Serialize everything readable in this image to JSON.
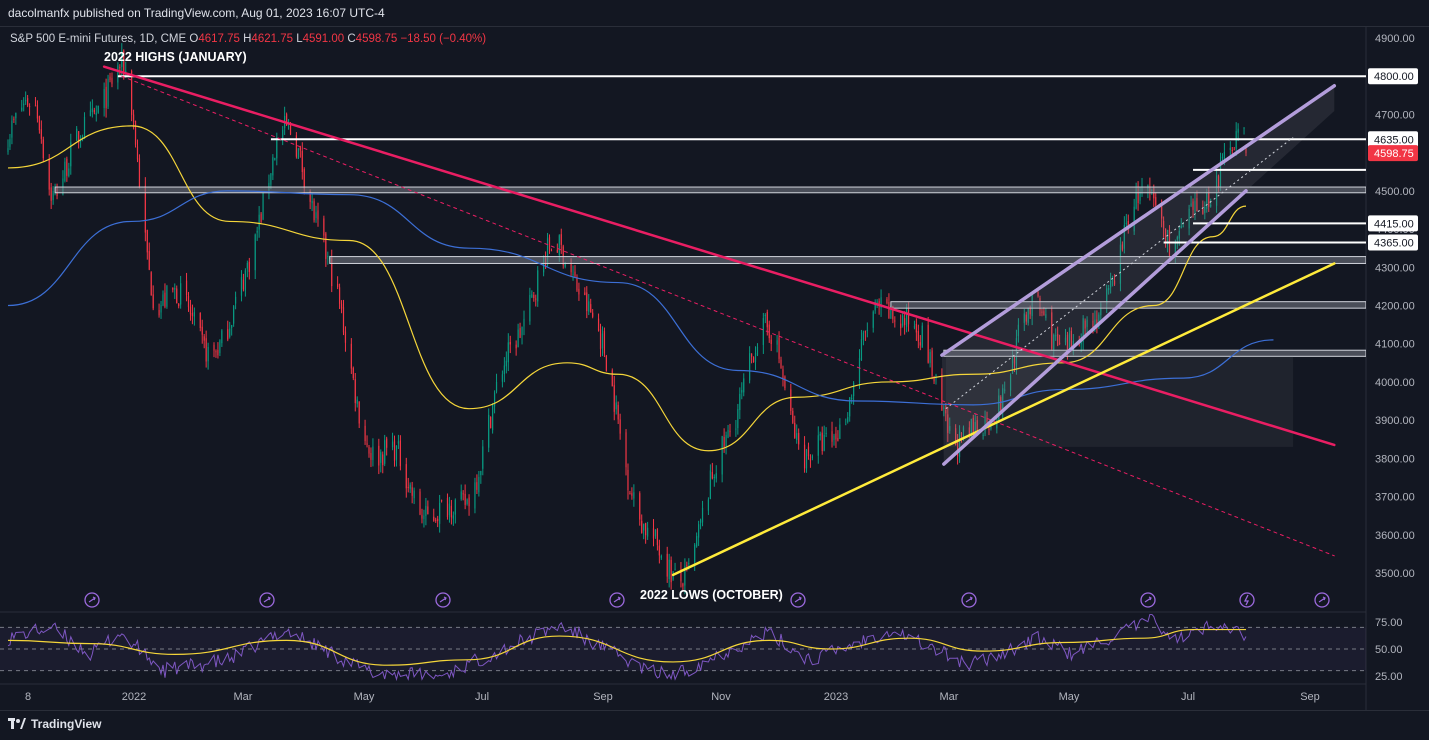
{
  "header": {
    "published_text": "dacolmanfx published on TradingView.com, Aug 01, 2023 16:07 UTC-4"
  },
  "legend": {
    "symbol": "S&P 500 E-mini Futures, 1D, CME",
    "open_label": "O",
    "open": "4617.75",
    "high_label": "H",
    "high": "4621.75",
    "low_label": "L",
    "low": "4591.00",
    "close_label": "C",
    "close": "4598.75",
    "change": "−18.50 (−0.40%)"
  },
  "annotations": {
    "highs": "2022 HIGHS (JANUARY)",
    "lows": "2022 LOWS (OCTOBER)"
  },
  "footer": {
    "brand": "TradingView"
  },
  "colors": {
    "background": "#131722",
    "up_candle": "#089981",
    "down_candle": "#f23645",
    "sma_short": "#f5d63a",
    "sma_long": "#3c6fd6",
    "trendline_down": "#e91e63",
    "trendline_up": "#ffeb3b",
    "channel": "#b39ddb",
    "rsi": "#7e57c2",
    "rsi_ma": "#f5d63a",
    "price_badge": "#f23645"
  },
  "chart_data": [
    {
      "type": "candlestick",
      "title": "S&P 500 E-mini Futures, 1D, CME",
      "ylim": [
        3450,
        4950
      ],
      "y_ticks": [
        "4900.00",
        "4800.00",
        "4700.00",
        "4600.00",
        "4500.00",
        "4400.00",
        "4300.00",
        "4200.00",
        "4100.00",
        "4000.00",
        "3900.00",
        "3800.00",
        "3700.00",
        "3600.00",
        "3500.00"
      ],
      "x_ticks": [
        "8",
        "2022",
        "Mar",
        "May",
        "Jul",
        "Sep",
        "Nov",
        "2023",
        "Mar",
        "May",
        "Jul",
        "Sep"
      ],
      "date_range": [
        "2021-11-08",
        "2023-08-01"
      ],
      "key_prices": [
        {
          "date": "2021-11-08",
          "price": 4650
        },
        {
          "date": "2021-11-22",
          "price": 4720
        },
        {
          "date": "2021-12-01",
          "price": 4520
        },
        {
          "date": "2022-01-04",
          "price": 4808
        },
        {
          "date": "2022-01-24",
          "price": 4230
        },
        {
          "date": "2022-02-24",
          "price": 4100
        },
        {
          "date": "2022-03-29",
          "price": 4630
        },
        {
          "date": "2022-05-20",
          "price": 3800
        },
        {
          "date": "2022-06-17",
          "price": 3640
        },
        {
          "date": "2022-08-16",
          "price": 4330
        },
        {
          "date": "2022-10-13",
          "price": 3500
        },
        {
          "date": "2022-12-01",
          "price": 4110
        },
        {
          "date": "2022-12-22",
          "price": 3790
        },
        {
          "date": "2023-02-02",
          "price": 4200
        },
        {
          "date": "2023-03-13",
          "price": 3840
        },
        {
          "date": "2023-04-18",
          "price": 4180
        },
        {
          "date": "2023-05-04",
          "price": 4090
        },
        {
          "date": "2023-06-15",
          "price": 4490
        },
        {
          "date": "2023-06-26",
          "price": 4360
        },
        {
          "date": "2023-07-27",
          "price": 4620
        },
        {
          "date": "2023-08-01",
          "price": 4598.75
        }
      ],
      "horizontal_levels": [
        {
          "price": 4800,
          "label": "4800.00",
          "from": "2022-01-03"
        },
        {
          "price": 4635,
          "label": "4635.00",
          "from": "2022-03-22"
        },
        {
          "price": 4555,
          "label": "",
          "from": "2023-07-05"
        },
        {
          "price": 4415,
          "label": "4415.00",
          "from": "2023-07-05"
        },
        {
          "price": 4365,
          "label": "4365.00",
          "from": "2023-06-20"
        }
      ],
      "zones": [
        {
          "from_price": 4495,
          "to_price": 4510,
          "from": "2021-12-02"
        },
        {
          "from_price": 4310,
          "to_price": 4328,
          "from": "2022-04-21"
        },
        {
          "from_price": 4193,
          "to_price": 4210,
          "from": "2023-02-01"
        },
        {
          "from_price": 4067,
          "to_price": 4083,
          "from": "2023-02-28"
        }
      ],
      "trendlines": [
        {
          "name": "",
          "role": "downtrend",
          "from": {
            "date": "2021-12-27",
            "price": 4825
          },
          "to": {
            "date": "2023-09-15",
            "price": 3835
          }
        },
        {
          "name": "",
          "role": "downtrend-dashed",
          "from": {
            "date": "2022-01-05",
            "price": 4800
          },
          "to": {
            "date": "2023-09-15",
            "price": 3545
          }
        },
        {
          "name": "",
          "role": "uptrend",
          "from": {
            "date": "2022-10-13",
            "price": 3495
          },
          "to": {
            "date": "2023-09-15",
            "price": 4310
          }
        },
        {
          "name": "",
          "role": "channel-upper",
          "from": {
            "date": "2023-02-27",
            "price": 4070
          },
          "to": {
            "date": "2023-09-15",
            "price": 4775
          }
        },
        {
          "name": "",
          "role": "channel-lower",
          "from": {
            "date": "2023-02-28",
            "price": 3785
          },
          "to": {
            "date": "2023-08-01",
            "price": 4500
          }
        }
      ],
      "moving_averages": [
        {
          "name": "",
          "color": "#f5d63a",
          "points": [
            [
              "2021-11-08",
              4560
            ],
            [
              "2022-01-10",
              4670
            ],
            [
              "2022-03-01",
              4420
            ],
            [
              "2022-05-01",
              4370
            ],
            [
              "2022-07-01",
              3930
            ],
            [
              "2022-08-20",
              4050
            ],
            [
              "2022-09-15",
              4020
            ],
            [
              "2022-10-31",
              3820
            ],
            [
              "2022-12-15",
              3960
            ],
            [
              "2023-01-31",
              4000
            ],
            [
              "2023-03-15",
              4020
            ],
            [
              "2023-04-30",
              4050
            ],
            [
              "2023-06-15",
              4200
            ],
            [
              "2023-07-15",
              4380
            ],
            [
              "2023-08-01",
              4460
            ]
          ]
        },
        {
          "name": "",
          "color": "#3c6fd6",
          "points": [
            [
              "2021-11-08",
              4200
            ],
            [
              "2022-01-10",
              4420
            ],
            [
              "2022-02-28",
              4500
            ],
            [
              "2022-05-01",
              4490
            ],
            [
              "2022-07-01",
              4350
            ],
            [
              "2022-09-15",
              4260
            ],
            [
              "2022-11-15",
              4030
            ],
            [
              "2023-01-15",
              3950
            ],
            [
              "2023-03-15",
              3940
            ],
            [
              "2023-04-30",
              3980
            ],
            [
              "2023-06-30",
              4010
            ],
            [
              "2023-08-15",
              4110
            ]
          ]
        }
      ]
    },
    {
      "type": "line",
      "title": "",
      "ylim": [
        20,
        85
      ],
      "y_ticks": [
        "75.00",
        "50.00",
        "25.00"
      ],
      "dashed_levels": [
        70,
        50,
        30
      ],
      "series": [
        {
          "name": "",
          "color": "#7e57c2",
          "points": [
            [
              "2021-11-08",
              60
            ],
            [
              "2021-11-30",
              70
            ],
            [
              "2021-12-20",
              45
            ],
            [
              "2022-01-04",
              65
            ],
            [
              "2022-01-26",
              30
            ],
            [
              "2022-03-01",
              40
            ],
            [
              "2022-03-29",
              68
            ],
            [
              "2022-05-12",
              28
            ],
            [
              "2022-06-17",
              25
            ],
            [
              "2022-08-16",
              72
            ],
            [
              "2022-09-30",
              30
            ],
            [
              "2022-10-13",
              25
            ],
            [
              "2022-11-30",
              65
            ],
            [
              "2022-12-22",
              40
            ],
            [
              "2023-02-02",
              68
            ],
            [
              "2023-03-13",
              35
            ],
            [
              "2023-04-18",
              60
            ],
            [
              "2023-05-04",
              45
            ],
            [
              "2023-06-15",
              78
            ],
            [
              "2023-06-26",
              58
            ],
            [
              "2023-07-19",
              75
            ],
            [
              "2023-08-01",
              62
            ]
          ]
        },
        {
          "name": "",
          "color": "#f5d63a",
          "points": [
            [
              "2021-11-08",
              58
            ],
            [
              "2021-12-20",
              55
            ],
            [
              "2022-02-01",
              45
            ],
            [
              "2022-03-30",
              58
            ],
            [
              "2022-05-20",
              35
            ],
            [
              "2022-06-30",
              40
            ],
            [
              "2022-08-16",
              62
            ],
            [
              "2022-10-13",
              38
            ],
            [
              "2022-12-01",
              58
            ],
            [
              "2023-01-01",
              50
            ],
            [
              "2023-02-10",
              60
            ],
            [
              "2023-03-20",
              48
            ],
            [
              "2023-04-30",
              56
            ],
            [
              "2023-06-10",
              60
            ],
            [
              "2023-07-05",
              68
            ],
            [
              "2023-08-01",
              68
            ]
          ]
        }
      ]
    }
  ]
}
